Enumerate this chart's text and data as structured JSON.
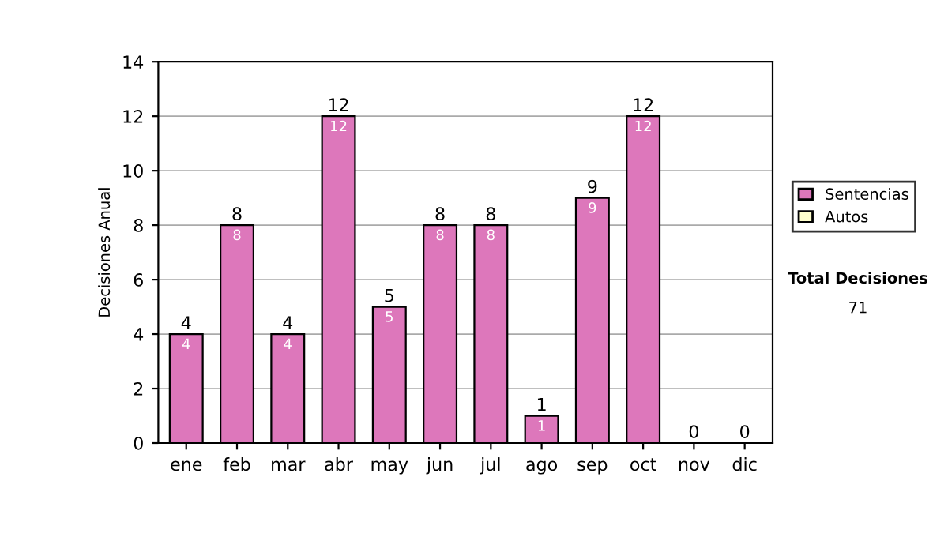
{
  "chart_data": {
    "type": "bar",
    "stacked": true,
    "ylabel": "Decisiones Anual",
    "categories": [
      "ene",
      "feb",
      "mar",
      "abr",
      "may",
      "jun",
      "jul",
      "ago",
      "sep",
      "oct",
      "nov",
      "dic"
    ],
    "series": [
      {
        "name": "Sentencias",
        "color": "#dd77bb",
        "values": [
          4,
          8,
          4,
          12,
          5,
          8,
          8,
          1,
          9,
          12,
          0,
          0
        ],
        "value_labels": [
          "4",
          "8",
          "4",
          "12",
          "5",
          "8",
          "8",
          "1",
          "9",
          "12",
          null,
          null
        ]
      },
      {
        "name": "Autos",
        "color": "#ffffcc",
        "values": [
          0,
          0,
          0,
          0,
          0,
          0,
          0,
          0,
          0,
          0,
          0,
          0
        ]
      }
    ],
    "totals": [
      "4",
      "8",
      "4",
      "12",
      "5",
      "8",
      "8",
      "1",
      "9",
      "12",
      "0",
      "0"
    ],
    "ylim": [
      0,
      14
    ],
    "yticks": [
      0,
      2,
      4,
      6,
      8,
      10,
      12,
      14
    ],
    "grid": "y",
    "legend": "right",
    "annotations": [
      "Total Decisiones",
      "71"
    ]
  }
}
